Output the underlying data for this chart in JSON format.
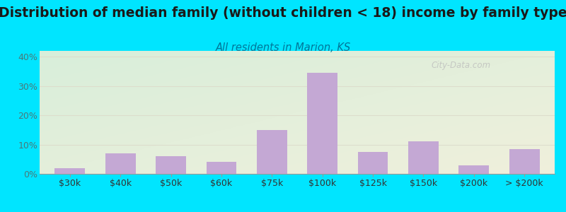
{
  "title": "Distribution of median family (without children < 18) income by family type",
  "subtitle": "All residents in Marion, KS",
  "categories": [
    "$30k",
    "$40k",
    "$50k",
    "$60k",
    "$75k",
    "$100k",
    "$125k",
    "$150k",
    "$200k",
    "> $200k"
  ],
  "values": [
    2.0,
    7.0,
    6.0,
    4.0,
    15.0,
    34.5,
    7.5,
    11.0,
    3.0,
    8.5
  ],
  "bar_color": "#c4a8d4",
  "background_outer": "#00e5ff",
  "background_chart_topleft": "#d8eeda",
  "background_chart_bottomright": "#f0f0dc",
  "ylabel_color": "#4a7a7a",
  "title_color": "#1a1a1a",
  "subtitle_color": "#007799",
  "grid_color": "#ddddcc",
  "ylim": [
    0,
    42
  ],
  "yticks": [
    0,
    10,
    20,
    30,
    40
  ],
  "title_fontsize": 13.5,
  "subtitle_fontsize": 10.5,
  "tick_fontsize": 9,
  "watermark": "City-Data.com"
}
